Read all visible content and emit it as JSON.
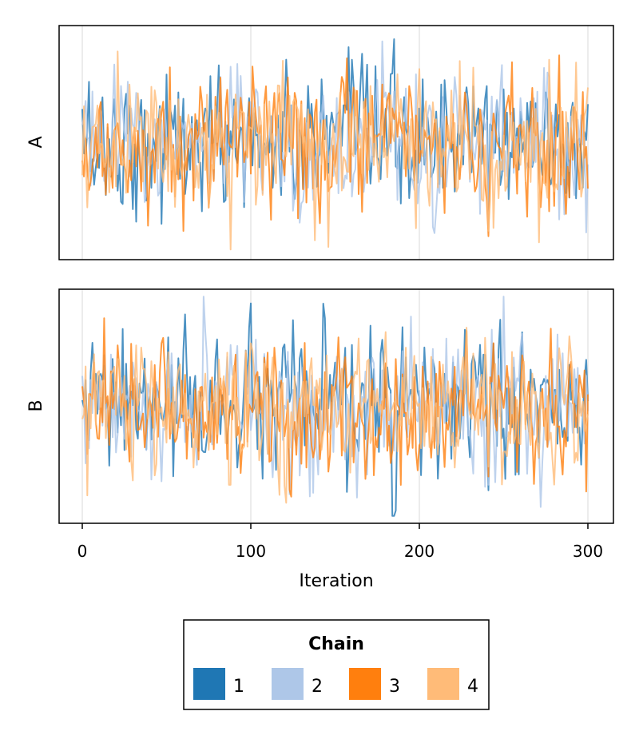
{
  "chart_data": {
    "type": "line",
    "xlabel": "Iteration",
    "xlim": [
      0,
      300
    ],
    "xticks": [
      "0",
      "100",
      "200",
      "300"
    ],
    "grid": true,
    "legend": {
      "title": "Chain",
      "placement": "bottom-center",
      "entries": [
        "1",
        "2",
        "3",
        "4"
      ]
    },
    "colors": [
      "#1f77b4",
      "#aec7e8",
      "#ff7f0e",
      "#ffbb78"
    ],
    "panels": [
      {
        "ylabel": "A",
        "ylim": [
          -3.2,
          3.2
        ]
      },
      {
        "ylabel": "B",
        "ylim": [
          -3.2,
          3.2
        ]
      }
    ],
    "series_note_values_sampled": true
  }
}
